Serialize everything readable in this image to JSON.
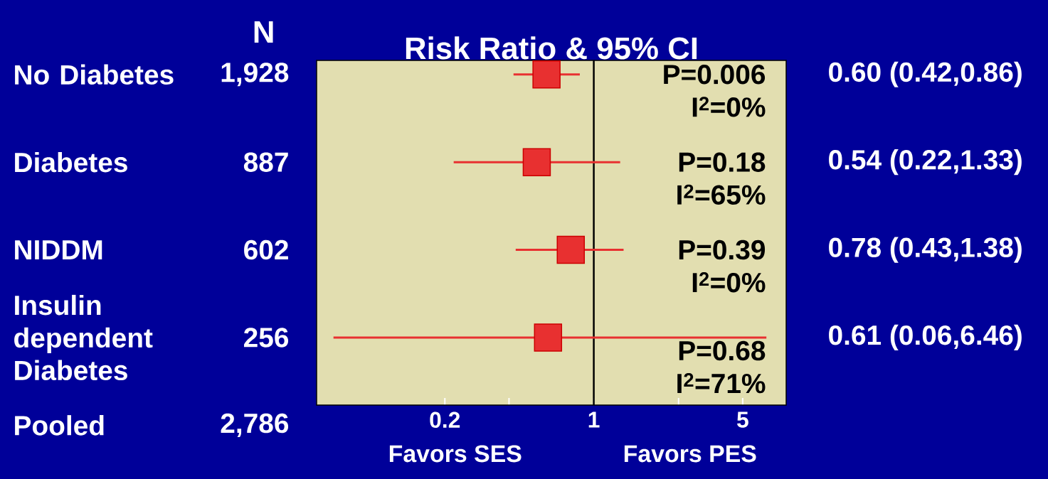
{
  "chart_data": {
    "type": "scatter",
    "orientation": "horizontal",
    "log": "x",
    "title": "Risk Ratio & 95% CI",
    "categories": [
      "No Diabetes",
      "Diabetes",
      "NIDDM",
      "Insulin dependent Diabetes",
      "Pooled"
    ],
    "values": [
      0.6,
      0.54,
      0.78,
      0.61,
      null
    ],
    "errors": [
      [
        0.42,
        0.86
      ],
      [
        0.22,
        1.33
      ],
      [
        0.43,
        1.38
      ],
      [
        0.06,
        6.46
      ],
      null
    ],
    "value_labels": [
      "0.60 (0.42,0.86)",
      "0.54 (0.22,1.33)",
      "0.78 (0.43,1.38)",
      "0.61 (0.06,6.46)",
      null
    ],
    "color": "#e83030",
    "marker": "square",
    "xlim": [
      0.05,
      8
    ],
    "xticks": [
      0.2,
      {
        "value": 0.4,
        "label": null
      },
      1,
      {
        "value": 2.5,
        "label": null
      },
      5
    ],
    "ref_lines": [
      {
        "axis": "x",
        "value": 1,
        "color": "#000000"
      }
    ],
    "annotations": [
      "N",
      "1,928",
      "887",
      "602",
      "256",
      "2,786",
      "P=0.006",
      "I$^{2}$=0%",
      "P=0.18",
      "I$^{2}$=65%",
      "P=0.39",
      "I$^{2}$=0%",
      "P=0.68",
      "I$^{2}$=71%",
      "Favors SES",
      "Favors PES"
    ]
  }
}
